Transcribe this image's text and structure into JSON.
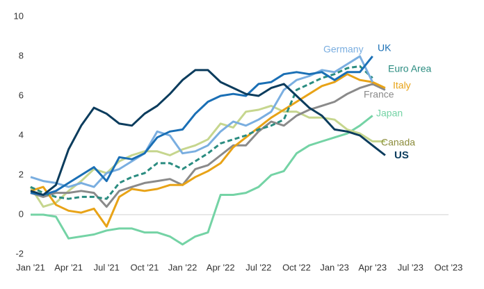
{
  "chart_data": {
    "type": "line",
    "categories": [
      "Jan '21",
      null,
      null,
      "Apr '21",
      null,
      null,
      "Jul '21",
      null,
      null,
      "Oct '21",
      null,
      null,
      "Jan '22",
      null,
      null,
      "Apr '22",
      null,
      null,
      "Jul '22",
      null,
      null,
      "Oct '22",
      null,
      null,
      "Jan '23",
      null,
      null,
      "Apr '23",
      null,
      null,
      "Jul '23",
      null,
      null,
      "Oct '23"
    ],
    "ylim": [
      -2,
      10
    ],
    "yticks": [
      -2,
      0,
      2,
      4,
      6,
      8,
      10
    ],
    "zero_line": true,
    "series": [
      {
        "name": "Japan",
        "color": "#74d3a5",
        "values": [
          0.0,
          0.0,
          -0.1,
          -1.2,
          -1.1,
          -1.0,
          -0.8,
          -0.7,
          -0.7,
          -0.9,
          -0.9,
          -1.1,
          -1.5,
          -1.1,
          -0.9,
          1.0,
          1.0,
          1.1,
          1.4,
          2.0,
          2.2,
          3.1,
          3.5,
          3.7,
          3.9,
          4.1,
          4.5,
          5.0,
          null,
          null,
          null,
          null,
          null,
          null
        ]
      },
      {
        "name": "Canada",
        "color": "#c6d68e",
        "values": [
          1.4,
          0.4,
          0.6,
          1.2,
          1.7,
          2.3,
          2.1,
          2.7,
          3.0,
          3.2,
          3.2,
          3.0,
          3.3,
          3.5,
          3.8,
          4.6,
          4.4,
          5.2,
          5.3,
          5.5,
          5.2,
          5.2,
          4.9,
          4.9,
          4.8,
          4.3,
          4.1,
          3.7,
          3.7,
          null,
          null,
          null,
          null,
          null
        ]
      },
      {
        "name": "France",
        "color": "#8a8a8a",
        "values": [
          1.1,
          0.9,
          1.1,
          1.1,
          1.2,
          1.1,
          0.4,
          1.2,
          1.4,
          1.6,
          1.7,
          1.8,
          1.5,
          2.3,
          2.5,
          3.0,
          3.5,
          3.5,
          4.2,
          4.7,
          4.5,
          5.0,
          5.3,
          5.5,
          5.7,
          6.1,
          6.4,
          6.6,
          6.3,
          null,
          null,
          null,
          null,
          null
        ]
      },
      {
        "name": "Italy",
        "color": "#e8a317",
        "values": [
          1.2,
          1.4,
          0.5,
          0.2,
          0.1,
          0.3,
          -0.6,
          0.9,
          1.3,
          1.2,
          1.3,
          1.5,
          1.5,
          1.9,
          2.2,
          2.6,
          3.4,
          3.9,
          4.4,
          4.9,
          5.3,
          5.7,
          6.1,
          6.5,
          6.7,
          7.1,
          6.8,
          6.7,
          6.4,
          null,
          null,
          null,
          null,
          null
        ]
      },
      {
        "name": "Euro Area",
        "color": "#2a8c80",
        "dashed": true,
        "values": [
          1.4,
          1.1,
          0.9,
          0.8,
          0.9,
          0.9,
          0.8,
          1.6,
          1.9,
          2.1,
          2.6,
          2.6,
          2.3,
          2.7,
          3.1,
          3.6,
          3.8,
          4.0,
          4.3,
          4.5,
          4.8,
          6.3,
          6.6,
          6.9,
          7.1,
          7.4,
          7.5,
          6.9,
          null,
          null,
          null,
          null,
          null,
          null
        ]
      },
      {
        "name": "Germany",
        "color": "#7aaee0",
        "values": [
          1.9,
          1.7,
          1.6,
          1.4,
          1.6,
          1.4,
          2.1,
          2.3,
          2.7,
          3.1,
          4.2,
          4.0,
          3.1,
          3.2,
          3.5,
          4.2,
          4.7,
          4.5,
          4.8,
          5.2,
          6.3,
          6.8,
          7.0,
          7.3,
          7.2,
          7.6,
          8.0,
          6.7,
          null,
          null,
          null,
          null,
          null,
          null
        ]
      },
      {
        "name": "UK",
        "color": "#1a6fb5",
        "values": [
          1.1,
          1.0,
          1.2,
          1.6,
          2.0,
          2.4,
          1.7,
          2.9,
          2.8,
          3.1,
          3.9,
          4.2,
          4.3,
          5.1,
          5.7,
          6.0,
          6.1,
          6.0,
          6.6,
          6.7,
          7.1,
          7.2,
          7.1,
          7.2,
          6.8,
          7.2,
          7.2,
          8.0,
          null,
          null,
          null,
          null,
          null,
          null
        ]
      },
      {
        "name": "US",
        "color": "#0b3c5d",
        "values": [
          1.2,
          1.0,
          1.5,
          3.3,
          4.5,
          5.4,
          5.1,
          4.6,
          4.5,
          5.1,
          5.5,
          6.1,
          6.8,
          7.3,
          7.3,
          6.7,
          6.4,
          6.1,
          6.0,
          6.4,
          6.6,
          6.0,
          5.4,
          5.0,
          4.3,
          4.2,
          4.0,
          3.5,
          3.0,
          null,
          null,
          null,
          null,
          null
        ]
      }
    ]
  }
}
